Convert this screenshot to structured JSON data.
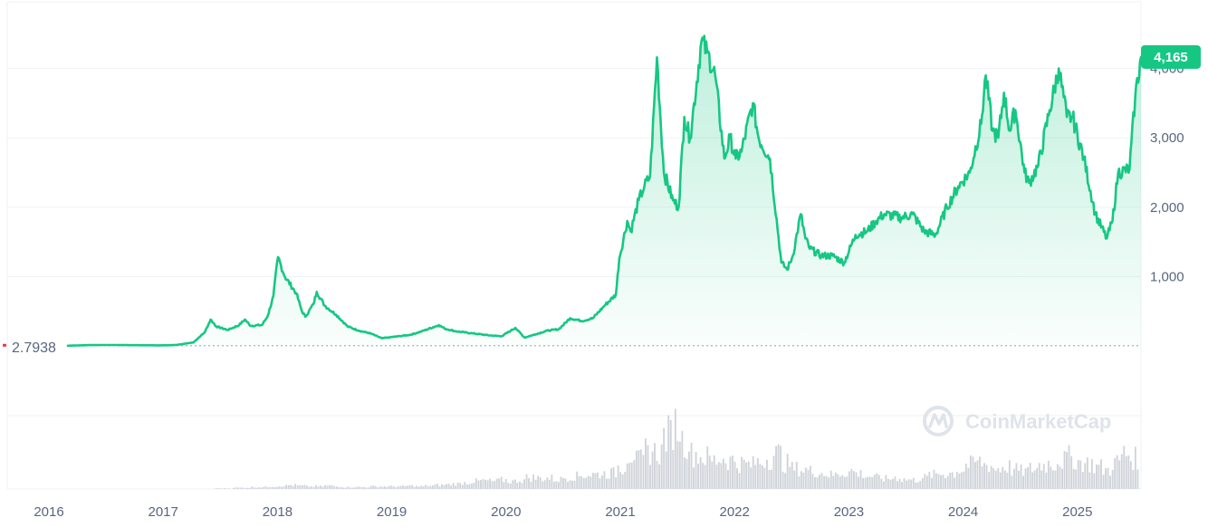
{
  "watermark": {
    "text": "CoinMarketCap"
  },
  "colors": {
    "line": "#16c784",
    "area_top": "#16c784",
    "badge": "#16c784",
    "grid": "#eff2f5",
    "axis_text": "#58667e",
    "baseline": "#a6b0c3",
    "volume": "#d0d4da",
    "watermark": "#dfe3ea"
  },
  "chart_data": {
    "type": "area",
    "x_ticks": [
      "2016",
      "2017",
      "2018",
      "2019",
      "2020",
      "2021",
      "2022",
      "2023",
      "2024",
      "2025"
    ],
    "y_ticks": [
      {
        "value": 1000,
        "label": "1,000"
      },
      {
        "value": 2000,
        "label": "2,000"
      },
      {
        "value": 3000,
        "label": "3,000"
      },
      {
        "value": 4000,
        "label": "4,000"
      }
    ],
    "ylim": [
      0,
      4600
    ],
    "xlim": [
      2015.85,
      2025.65
    ],
    "grid": true,
    "baseline": {
      "value": 2.7938,
      "label": "2.7938"
    },
    "current": {
      "value": 4165,
      "label": "4,165"
    },
    "series": [
      {
        "points": [
          [
            2016.2,
            2.8
          ],
          [
            2016.4,
            12
          ],
          [
            2016.6,
            13
          ],
          [
            2016.8,
            10
          ],
          [
            2017.0,
            8
          ],
          [
            2017.1,
            10
          ],
          [
            2017.15,
            14
          ],
          [
            2017.3,
            50
          ],
          [
            2017.4,
            200
          ],
          [
            2017.45,
            380
          ],
          [
            2017.5,
            280
          ],
          [
            2017.6,
            230
          ],
          [
            2017.7,
            300
          ],
          [
            2017.75,
            380
          ],
          [
            2017.8,
            290
          ],
          [
            2017.9,
            300
          ],
          [
            2017.95,
            430
          ],
          [
            2018.0,
            720
          ],
          [
            2018.04,
            1280
          ],
          [
            2018.1,
            1000
          ],
          [
            2018.2,
            760
          ],
          [
            2018.25,
            500
          ],
          [
            2018.28,
            420
          ],
          [
            2018.35,
            600
          ],
          [
            2018.38,
            780
          ],
          [
            2018.45,
            580
          ],
          [
            2018.55,
            450
          ],
          [
            2018.65,
            280
          ],
          [
            2018.75,
            220
          ],
          [
            2018.85,
            180
          ],
          [
            2018.95,
            110
          ],
          [
            2019.0,
            120
          ],
          [
            2019.1,
            140
          ],
          [
            2019.2,
            160
          ],
          [
            2019.3,
            210
          ],
          [
            2019.45,
            300
          ],
          [
            2019.5,
            250
          ],
          [
            2019.6,
            210
          ],
          [
            2019.75,
            180
          ],
          [
            2019.9,
            150
          ],
          [
            2020.0,
            140
          ],
          [
            2020.08,
            220
          ],
          [
            2020.12,
            260
          ],
          [
            2020.2,
            120
          ],
          [
            2020.3,
            170
          ],
          [
            2020.4,
            220
          ],
          [
            2020.5,
            240
          ],
          [
            2020.6,
            400
          ],
          [
            2020.7,
            360
          ],
          [
            2020.8,
            400
          ],
          [
            2020.9,
            580
          ],
          [
            2021.0,
            740
          ],
          [
            2021.03,
            1260
          ],
          [
            2021.1,
            1800
          ],
          [
            2021.13,
            1650
          ],
          [
            2021.2,
            2100
          ],
          [
            2021.25,
            2300
          ],
          [
            2021.3,
            2450
          ],
          [
            2021.36,
            4160
          ],
          [
            2021.42,
            2500
          ],
          [
            2021.5,
            2100
          ],
          [
            2021.55,
            2000
          ],
          [
            2021.6,
            3300
          ],
          [
            2021.65,
            3000
          ],
          [
            2021.75,
            4400
          ],
          [
            2021.8,
            4230
          ],
          [
            2021.87,
            3900
          ],
          [
            2021.95,
            2700
          ],
          [
            2022.0,
            3000
          ],
          [
            2022.05,
            2700
          ],
          [
            2022.1,
            2800
          ],
          [
            2022.2,
            3500
          ],
          [
            2022.25,
            3000
          ],
          [
            2022.35,
            2700
          ],
          [
            2022.45,
            1200
          ],
          [
            2022.5,
            1100
          ],
          [
            2022.55,
            1300
          ],
          [
            2022.62,
            1900
          ],
          [
            2022.66,
            1550
          ],
          [
            2022.7,
            1400
          ],
          [
            2022.8,
            1300
          ],
          [
            2022.9,
            1300
          ],
          [
            2023.0,
            1200
          ],
          [
            2023.1,
            1600
          ],
          [
            2023.2,
            1650
          ],
          [
            2023.28,
            1800
          ],
          [
            2023.35,
            1900
          ],
          [
            2023.5,
            1850
          ],
          [
            2023.6,
            1900
          ],
          [
            2023.7,
            1650
          ],
          [
            2023.8,
            1600
          ],
          [
            2023.9,
            2000
          ],
          [
            2024.0,
            2300
          ],
          [
            2024.1,
            2500
          ],
          [
            2024.2,
            3200
          ],
          [
            2024.24,
            3900
          ],
          [
            2024.3,
            3100
          ],
          [
            2024.35,
            3000
          ],
          [
            2024.4,
            3650
          ],
          [
            2024.45,
            3100
          ],
          [
            2024.5,
            3400
          ],
          [
            2024.58,
            2500
          ],
          [
            2024.62,
            2350
          ],
          [
            2024.7,
            2600
          ],
          [
            2024.8,
            3400
          ],
          [
            2024.88,
            4000
          ],
          [
            2024.95,
            3300
          ],
          [
            2025.0,
            3300
          ],
          [
            2025.1,
            2700
          ],
          [
            2025.2,
            1900
          ],
          [
            2025.3,
            1550
          ],
          [
            2025.35,
            1800
          ],
          [
            2025.4,
            2500
          ],
          [
            2025.5,
            2550
          ],
          [
            2025.55,
            3600
          ],
          [
            2025.6,
            4165
          ]
        ]
      }
    ],
    "volume": [
      0,
      0,
      0,
      0,
      0,
      0,
      0,
      0,
      0,
      0,
      0,
      0,
      0,
      0,
      0,
      0,
      0.01,
      0.01,
      0.02,
      0.02,
      0.03,
      0.03,
      0.04,
      0.05,
      0.06,
      0.05,
      0.04,
      0.04,
      0.05,
      0.04,
      0.03,
      0.03,
      0.03,
      0.04,
      0.04,
      0.04,
      0.04,
      0.05,
      0.04,
      0.05,
      0.06,
      0.07,
      0.08,
      0.1,
      0.12,
      0.13,
      0.12,
      0.14,
      0.12,
      0.14,
      0.18,
      0.17,
      0.17,
      0.15,
      0.18,
      0.2,
      0.22,
      0.23,
      0.24,
      0.25,
      0.35,
      0.55,
      0.45,
      0.6,
      0.58,
      0.85,
      1.0,
      0.75,
      0.55,
      0.5,
      0.45,
      0.48,
      0.45,
      0.4,
      0.38,
      0.42,
      0.48,
      0.55,
      0.4,
      0.32,
      0.3,
      0.28,
      0.25,
      0.22,
      0.25,
      0.28,
      0.24,
      0.2,
      0.18,
      0.16,
      0.18,
      0.15,
      0.14,
      0.18,
      0.22,
      0.24,
      0.25,
      0.3,
      0.38,
      0.42,
      0.38,
      0.32,
      0.35,
      0.3,
      0.28,
      0.32,
      0.38,
      0.4,
      0.45,
      0.5,
      0.42,
      0.4,
      0.35,
      0.3,
      0.42,
      0.55,
      0.48
    ]
  }
}
